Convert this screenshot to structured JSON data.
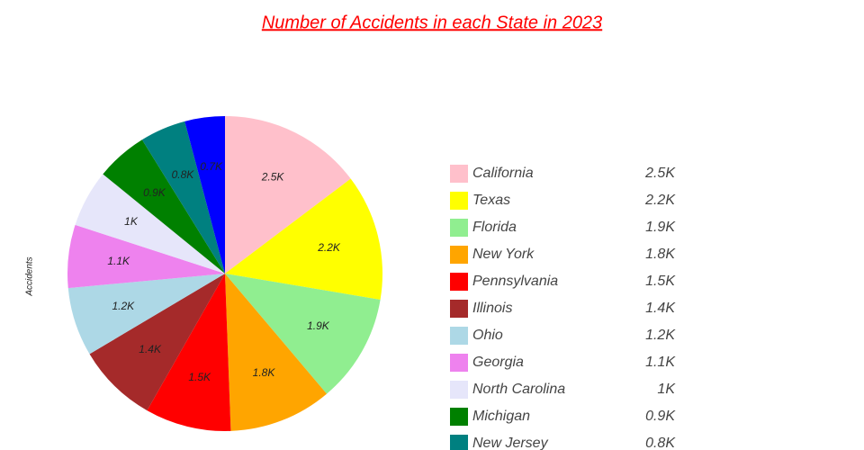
{
  "chart_data": {
    "type": "pie",
    "title": "Number of Accidents in each State in 2023",
    "y_label": "Accidents",
    "categories": [
      "California",
      "Texas",
      "Florida",
      "New York",
      "Pennsylvania",
      "Illinois",
      "Ohio",
      "Georgia",
      "North Carolina",
      "Michigan",
      "New Jersey",
      null
    ],
    "values": [
      2500,
      2200,
      1900,
      1800,
      1500,
      1400,
      1200,
      1100,
      1000,
      900,
      800,
      700
    ],
    "value_labels": [
      "2.5K",
      "2.2K",
      "1.9K",
      "1.8K",
      "1.5K",
      "1.4K",
      "1.2K",
      "1.1K",
      "1K",
      "0.9K",
      "0.8K",
      "0.7K"
    ],
    "colors": [
      "#ffc0cb",
      "#ffff00",
      "#90ee90",
      "#ffa500",
      "#ff0000",
      "#a52a2a",
      "#add8e6",
      "#ee82ee",
      "#e6e6fa",
      "#008000",
      "#008080",
      "#0000ff"
    ],
    "legend": "right"
  }
}
